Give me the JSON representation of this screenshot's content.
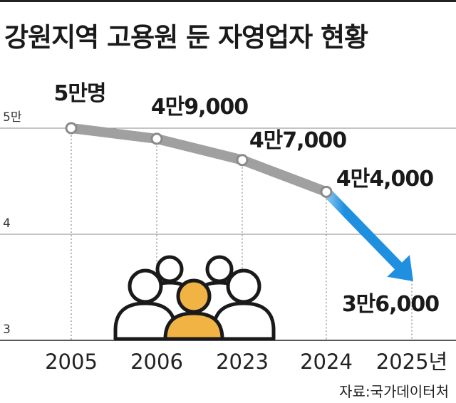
{
  "title": "강원지역 고용원 둔 자영업자 현황",
  "source": "자료:국가데이터처",
  "colors": {
    "line": "#a0a0a0",
    "forecast": "#1f8fe0",
    "people_outline": "#1a1a1a",
    "person_highlight": "#f2b345"
  },
  "icon": "people-group-icon",
  "chart_data": {
    "type": "line",
    "title": "강원지역 고용원 둔 자영업자 현황",
    "xlabel": "",
    "ylabel": "",
    "x": [
      "2005",
      "2006",
      "2023",
      "2024",
      "2025년"
    ],
    "series": [
      {
        "values": [
          50000,
          49000,
          47000,
          44000,
          36000
        ]
      }
    ],
    "data_labels": [
      "5만명",
      "4만9,000",
      "4만7,000",
      "4만4,000",
      "3만6,000"
    ],
    "y_ticks": [
      "5만",
      "4",
      "3"
    ],
    "ylim": [
      30000,
      50000
    ],
    "grid": true,
    "forecast_from_index": 3
  }
}
